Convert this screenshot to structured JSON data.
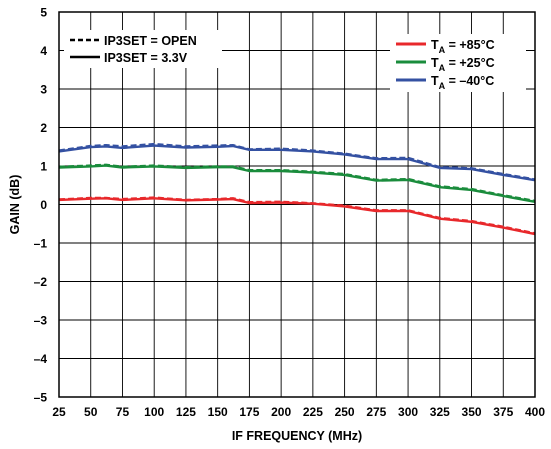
{
  "chart_data": {
    "type": "line",
    "xlabel": "IF FREQUENCY (MHz)",
    "ylabel": "GAIN (dB)",
    "xlim": [
      25,
      400
    ],
    "ylim": [
      -5,
      5
    ],
    "x_ticks": [
      "25",
      "50",
      "75",
      "100",
      "125",
      "150",
      "175",
      "200",
      "225",
      "250",
      "275",
      "300",
      "325",
      "350",
      "375",
      "400"
    ],
    "y_ticks": [
      "5",
      "4",
      "3",
      "2",
      "1",
      "0",
      "–1",
      "–2",
      "–3",
      "–4",
      "–5"
    ],
    "grid": true,
    "legend_styles": {
      "position": "top-left",
      "entries": [
        {
          "label": "IP3SET = OPEN",
          "dash": "dashed"
        },
        {
          "label": "IP3SET = 3.3V",
          "dash": "solid"
        }
      ]
    },
    "legend_temps": {
      "position": "top-right",
      "entries": [
        {
          "prefix": "T",
          "sub": "A",
          "suffix": " = +85°C",
          "color": "#e8282b"
        },
        {
          "prefix": "T",
          "sub": "A",
          "suffix": " = +25°C",
          "color": "#1a8c3c"
        },
        {
          "prefix": "T",
          "sub": "A",
          "suffix": " = –40°C",
          "color": "#3451a2"
        }
      ]
    },
    "x": [
      25,
      50,
      62,
      75,
      100,
      125,
      150,
      162,
      175,
      200,
      225,
      250,
      275,
      300,
      325,
      350,
      375,
      400
    ],
    "series": [
      {
        "color": "#3451a2",
        "dash": "solid",
        "values": [
          1.38,
          1.49,
          1.51,
          1.47,
          1.53,
          1.48,
          1.5,
          1.52,
          1.42,
          1.42,
          1.38,
          1.3,
          1.18,
          1.18,
          0.95,
          0.92,
          0.77,
          0.63
        ]
      },
      {
        "color": "#3451a2",
        "dash": "dashed",
        "values": [
          1.4,
          1.52,
          1.54,
          1.51,
          1.57,
          1.51,
          1.53,
          1.54,
          1.43,
          1.45,
          1.4,
          1.32,
          1.2,
          1.21,
          0.97,
          0.94,
          0.79,
          0.65
        ]
      },
      {
        "color": "#1a8c3c",
        "dash": "solid",
        "values": [
          0.96,
          0.99,
          1.01,
          0.96,
          0.99,
          0.95,
          0.97,
          0.97,
          0.87,
          0.87,
          0.83,
          0.77,
          0.62,
          0.64,
          0.45,
          0.38,
          0.22,
          0.07
        ]
      },
      {
        "color": "#1a8c3c",
        "dash": "dashed",
        "values": [
          0.98,
          1.01,
          1.03,
          0.98,
          1.01,
          0.97,
          0.99,
          0.99,
          0.89,
          0.89,
          0.85,
          0.79,
          0.64,
          0.66,
          0.47,
          0.4,
          0.24,
          0.09
        ]
      },
      {
        "color": "#e8282b",
        "dash": "solid",
        "values": [
          0.12,
          0.15,
          0.16,
          0.12,
          0.16,
          0.11,
          0.13,
          0.14,
          0.04,
          0.05,
          0.02,
          -0.05,
          -0.17,
          -0.17,
          -0.37,
          -0.45,
          -0.6,
          -0.77
        ]
      },
      {
        "color": "#e8282b",
        "dash": "dashed",
        "values": [
          0.13,
          0.17,
          0.17,
          0.14,
          0.18,
          0.12,
          0.14,
          0.16,
          0.06,
          0.07,
          0.03,
          -0.03,
          -0.15,
          -0.15,
          -0.35,
          -0.43,
          -0.58,
          -0.75
        ]
      }
    ]
  }
}
